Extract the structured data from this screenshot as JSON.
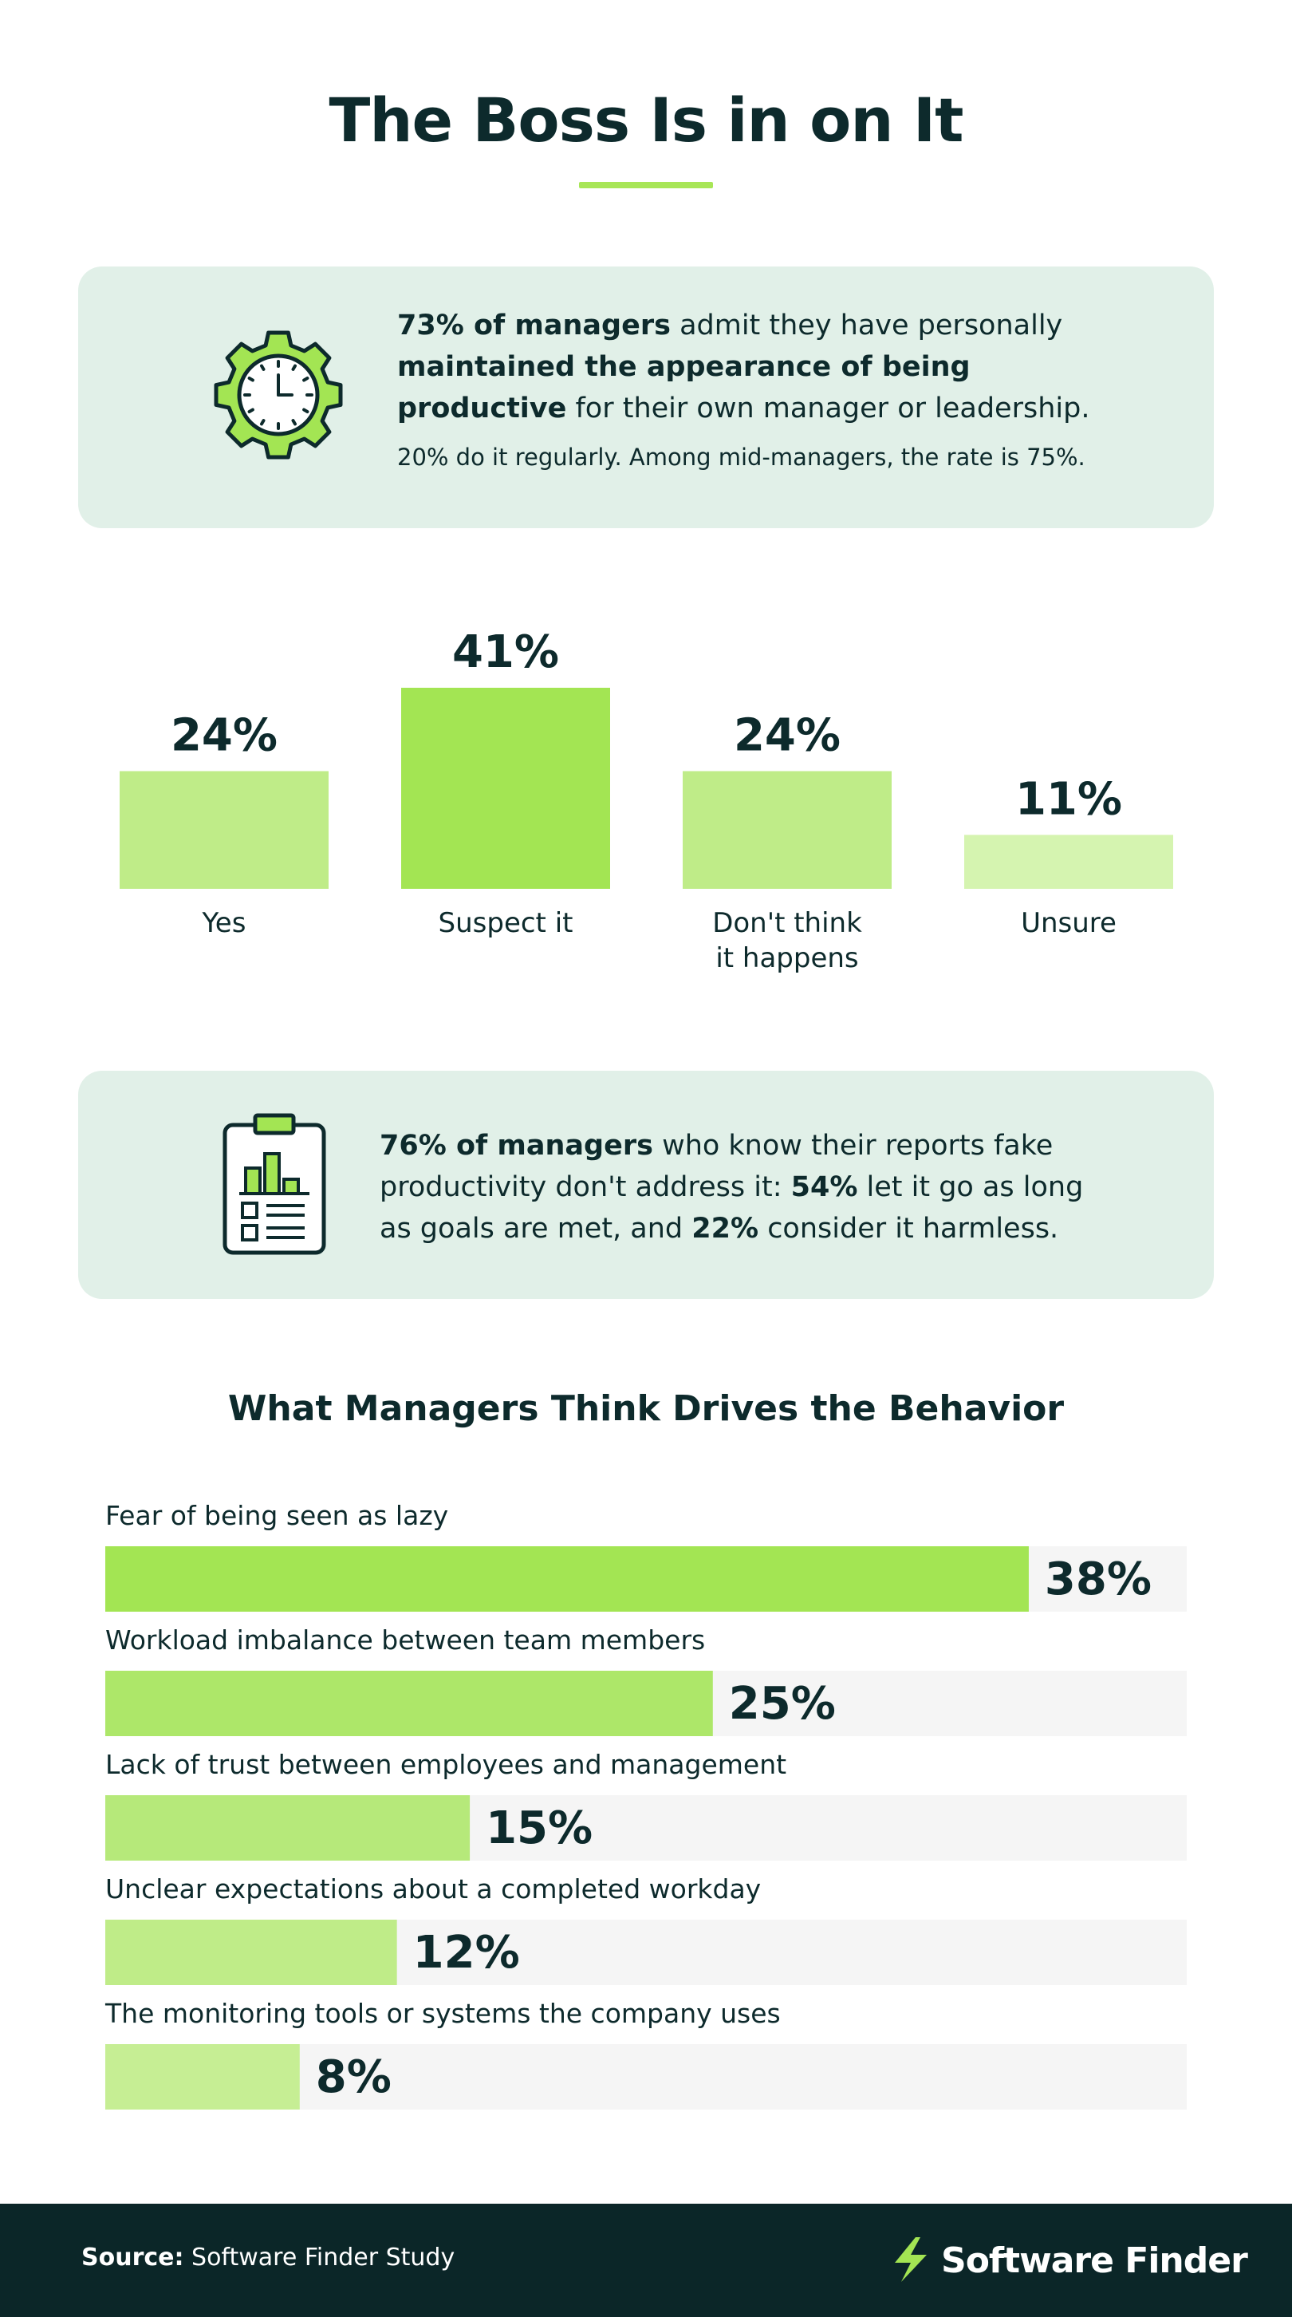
{
  "title": "The Boss Is in on It",
  "card1": {
    "icon": "gear-clock-icon",
    "p1_bold": "73% of managers",
    "p1_a": " admit they have personally ",
    "p1_bold2": "maintained the appearance of being productive",
    "p1_b": " for their own manager or leadership.",
    "sub": "20% do it regularly. Among mid-managers, the rate is 75%."
  },
  "card2": {
    "icon": "clipboard-chart-icon",
    "p_bold": "76% of managers",
    "p_a": " who know their reports fake productivity don't address it: ",
    "p_bold2": "54%",
    "p_b": " let it go as long as goals are met, and ",
    "p_bold3": "22%",
    "p_c": " consider it harmless."
  },
  "chart_data": [
    {
      "type": "bar",
      "categories": [
        "Yes",
        "Suspect it",
        "Don't think it happens",
        "Unsure"
      ],
      "category_lines": [
        [
          "Yes"
        ],
        [
          "Suspect it"
        ],
        [
          "Don't think",
          "it happens"
        ],
        [
          "Unsure"
        ]
      ],
      "values": [
        24,
        41,
        24,
        11
      ],
      "value_labels": [
        "24%",
        "41%",
        "24%",
        "11%"
      ],
      "colors": [
        "#bfec88",
        "#a3e553",
        "#bfec88",
        "#d5f4b0"
      ],
      "ylim": [
        0,
        41
      ],
      "grid": false
    },
    {
      "type": "bar",
      "orientation": "horizontal",
      "title": "What Managers Think Drives the Behavior",
      "categories": [
        "Fear of being seen as lazy",
        "Workload imbalance between team members",
        "Lack of trust between employees and management",
        "Unclear expectations about a completed workday",
        "The monitoring tools or systems the company uses"
      ],
      "values": [
        38,
        25,
        15,
        12,
        8
      ],
      "value_labels": [
        "38%",
        "25%",
        "15%",
        "12%",
        "8%"
      ],
      "colors": [
        "#a3e553",
        "#ade769",
        "#b6e97a",
        "#bfec88",
        "#c6ee94"
      ],
      "track_color": "#f5f5f5",
      "xlim": [
        0,
        44.5
      ],
      "grid": false
    }
  ],
  "footer": {
    "source_label": "Source:",
    "source_text": " Software Finder Study",
    "brand": "Software Finder",
    "logo": "software-finder-logo-icon"
  }
}
